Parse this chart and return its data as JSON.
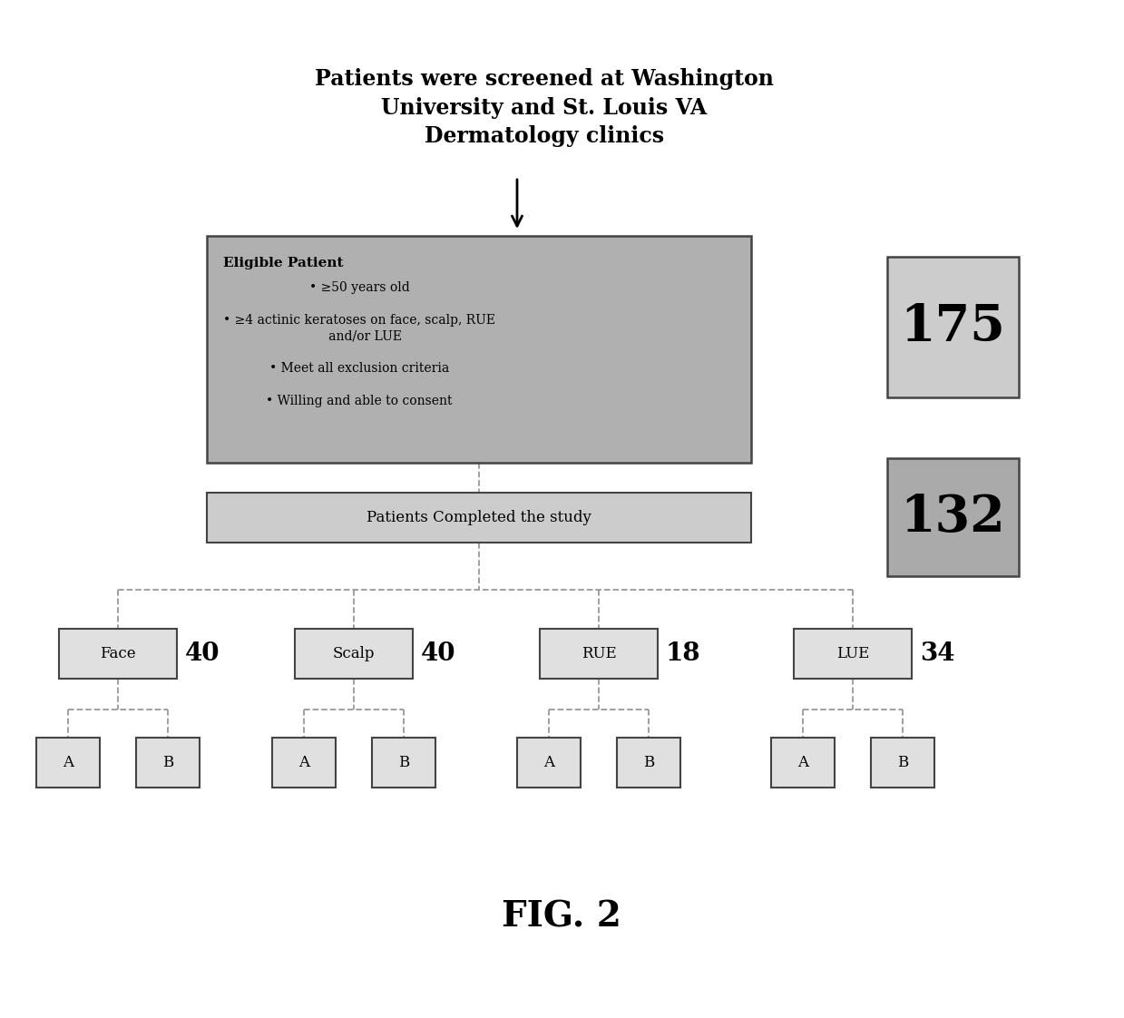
{
  "title_line1": "Patients were screened at Washington",
  "title_line2": "University and St. Louis VA",
  "title_line3": "Dermatology clinics",
  "eligible_title": "Eligible Patient",
  "completed_text": "Patients Completed the study",
  "num_screened": "175",
  "num_completed": "132",
  "site_labels": [
    "Face",
    "Scalp",
    "RUE",
    "LUE"
  ],
  "site_numbers": [
    "40",
    "40",
    "18",
    "34"
  ],
  "ab_labels": [
    "A",
    "B"
  ],
  "fig_label": "FIG. 2",
  "eligible_box_color": "#b0b0b0",
  "completed_box_color": "#cccccc",
  "num175_box_color": "#cccccc",
  "num132_box_color": "#aaaaaa",
  "site_box_color": "#e0e0e0",
  "ab_box_color": "#e0e0e0",
  "line_color": "#999999",
  "bg_color": "#ffffff"
}
